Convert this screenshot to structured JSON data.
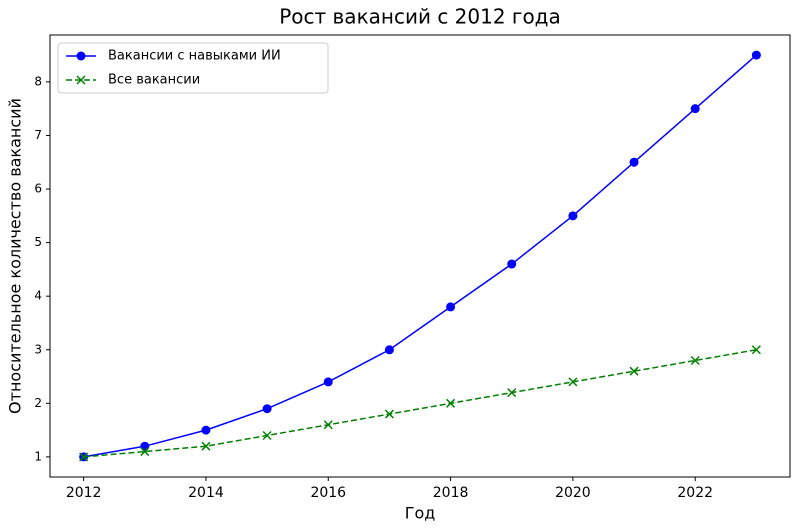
{
  "chart_data": {
    "type": "line",
    "title": "Рост вакансий с 2012 года",
    "x_label": "Год",
    "y_label": "Относительное количество вакансий",
    "x": [
      2012,
      2013,
      2014,
      2015,
      2016,
      2017,
      2018,
      2019,
      2020,
      2021,
      2022,
      2023
    ],
    "series": [
      {
        "name": "Вакансии с навыками ИИ",
        "color": "#0000ff",
        "marker": "circle",
        "dash": false,
        "values": [
          1,
          1.2,
          1.5,
          1.9,
          2.4,
          3.0,
          3.8,
          4.6,
          5.5,
          6.5,
          7.5,
          8.5
        ]
      },
      {
        "name": "Все вакансии",
        "color": "#008000",
        "marker": "x",
        "dash": true,
        "values": [
          1.0,
          1.1,
          1.2,
          1.4,
          1.6,
          1.8,
          2.0,
          2.2,
          2.4,
          2.6,
          2.8,
          3.0
        ]
      }
    ],
    "xlim": [
      2011.45,
      2023.55
    ],
    "xticks": [
      2012,
      2014,
      2016,
      2018,
      2020,
      2022
    ],
    "ylim": [
      0.625,
      8.875
    ],
    "yticks": [
      1,
      2,
      3,
      4,
      5,
      6,
      7,
      8
    ],
    "grid": false,
    "legend": "upper-left"
  }
}
